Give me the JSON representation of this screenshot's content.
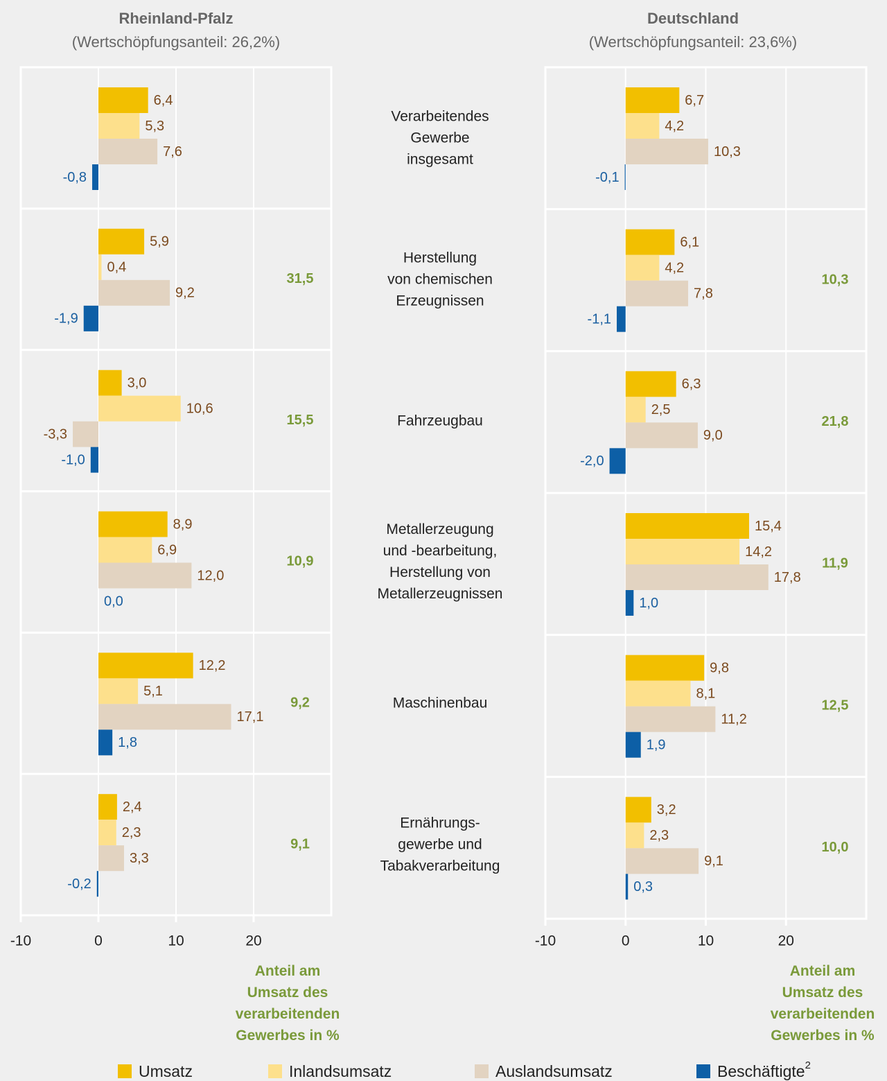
{
  "chart_data": [
    {
      "type": "bar",
      "orientation": "horizontal",
      "grid": true,
      "title": "Rheinland-Pfalz",
      "subtitle": "(Wertschöpfungsanteil: 26,2%)",
      "categories": [
        "Verarbeitendes\nGewerbe\ninsgesamt",
        "Herstellung\nvon chemischen\nErzeugnissen",
        "Fahrzeugbau",
        "Metallerzeugung\nund -bearbeitung,\nHerstellung von\nMetallerzeugnissen",
        "Maschinenbau",
        "Ernährungs-\ngewerbe und\nTabakverarbeitung"
      ],
      "xlim": [
        -10,
        30
      ],
      "xticks": [
        -10,
        0,
        10,
        20
      ],
      "series": [
        {
          "name": "Umsatz",
          "color": "#f2bf00",
          "values": [
            6.4,
            5.9,
            3.0,
            8.9,
            12.2,
            2.4
          ],
          "value_labels": [
            "6,4",
            "5,9",
            "3,0",
            "8,9",
            "12,2",
            "2,4"
          ]
        },
        {
          "name": "Inlandsumsatz",
          "color": "#fde08c",
          "values": [
            5.3,
            0.4,
            10.6,
            6.9,
            5.1,
            2.3
          ],
          "value_labels": [
            "5,3",
            "0,4",
            "10,6",
            "6,9",
            "5,1",
            "2,3"
          ]
        },
        {
          "name": "Auslandsumsatz",
          "color": "#e2d3c1",
          "values": [
            7.6,
            9.2,
            -3.3,
            12.0,
            17.1,
            3.3
          ],
          "value_labels": [
            "7,6",
            "9,2",
            "-3,3",
            "12,0",
            "17,1",
            "3,3"
          ]
        },
        {
          "name": "Beschäftigte",
          "name_footnote": "2",
          "color": "#0d5fa6",
          "values": [
            -0.8,
            -1.9,
            -1.0,
            0.0,
            1.8,
            -0.2
          ],
          "value_labels": [
            "-0,8",
            "-1,9",
            "-1,0",
            "0,0",
            "1,8",
            "-0,2"
          ]
        }
      ],
      "shares": [
        null,
        31.5,
        15.5,
        10.9,
        9.2,
        9.1
      ],
      "share_value_labels": [
        null,
        "31,5",
        "15,5",
        "10,9",
        "9,2",
        "9,1"
      ],
      "share_label": "Anteil am\nUmsatz des\nverarbeitenden\nGewerbes  in %"
    },
    {
      "type": "bar",
      "orientation": "horizontal",
      "grid": true,
      "title": "Deutschland",
      "subtitle": "(Wertschöpfungsanteil: 23,6%)",
      "xlim": [
        -10,
        30
      ],
      "xticks": [
        -10,
        0,
        10,
        20
      ],
      "series": [
        {
          "color": "#f2bf00",
          "values": [
            6.7,
            6.1,
            6.3,
            15.4,
            9.8,
            3.2
          ],
          "value_labels": [
            "6,7",
            "6,1",
            "6,3",
            "15,4",
            "9,8",
            "3,2"
          ]
        },
        {
          "color": "#fde08c",
          "values": [
            4.2,
            4.2,
            2.5,
            14.2,
            8.1,
            2.3
          ],
          "value_labels": [
            "4,2",
            "4,2",
            "2,5",
            "14,2",
            "8,1",
            "2,3"
          ]
        },
        {
          "color": "#e2d3c1",
          "values": [
            10.3,
            7.8,
            9.0,
            17.8,
            11.2,
            9.1
          ],
          "value_labels": [
            "10,3",
            "7,8",
            "9,0",
            "17,8",
            "11,2",
            "9,1"
          ]
        },
        {
          "color": "#0d5fa6",
          "values": [
            -0.1,
            -1.1,
            -2.0,
            1.0,
            1.9,
            0.3
          ],
          "value_labels": [
            "-0,1",
            "-1,1",
            "-2,0",
            "1,0",
            "1,9",
            "0,3"
          ]
        }
      ],
      "shares": [
        null,
        10.3,
        21.8,
        11.9,
        12.5,
        10.0
      ],
      "share_value_labels": [
        null,
        "10,3",
        "21,8",
        "11,9",
        "12,5",
        "10,0"
      ],
      "share_label": "Anteil am\nUmsatz des\nverarbeitenden\nGewerbes  in %"
    }
  ]
}
